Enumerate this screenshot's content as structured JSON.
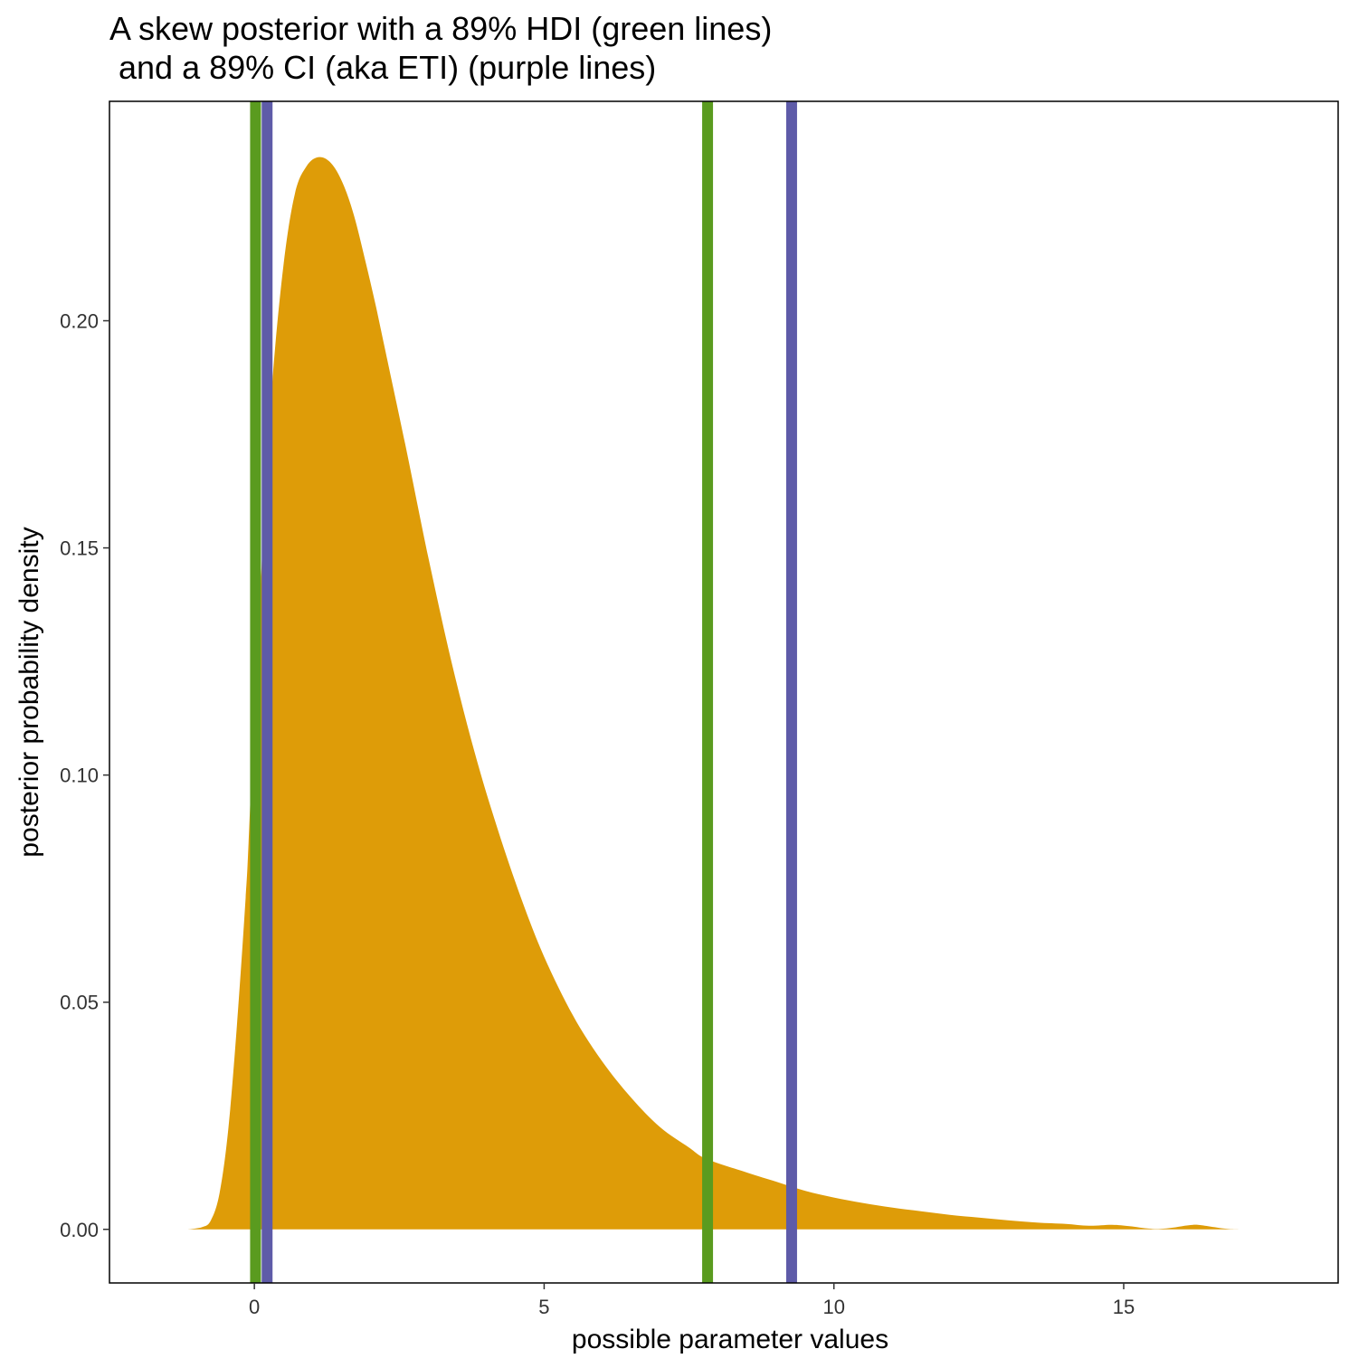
{
  "chart_data": {
    "type": "area",
    "title_lines": [
      "A skew posterior with a 89% HDI (green lines)",
      " and a 89% CI (aka ETI) (purple lines)"
    ],
    "xlabel": "possible parameter values",
    "ylabel": "posterior probability density",
    "xlim": [
      -2.5,
      18.7
    ],
    "ylim": [
      -0.0118,
      0.2483
    ],
    "x_ticks": [
      {
        "value": 0,
        "label": "0"
      },
      {
        "value": 5,
        "label": "5"
      },
      {
        "value": 10,
        "label": "10"
      },
      {
        "value": 15,
        "label": "15"
      }
    ],
    "y_ticks": [
      {
        "value": 0.0,
        "label": "0.00"
      },
      {
        "value": 0.05,
        "label": "0.05"
      },
      {
        "value": 0.1,
        "label": "0.10"
      },
      {
        "value": 0.15,
        "label": "0.15"
      },
      {
        "value": 0.2,
        "label": "0.20"
      }
    ],
    "grid": false,
    "colors": {
      "density": "#DE9C08",
      "hdi": "#5A9B1F",
      "eti": "#5E5BA8",
      "frame": "#000000"
    },
    "series": [
      {
        "x": [
          -1.15,
          -0.9,
          -0.75,
          -0.6,
          -0.45,
          -0.3,
          -0.15,
          -0.1,
          0.0,
          0.15,
          0.3,
          0.5,
          0.7,
          0.9,
          1.1,
          1.3,
          1.5,
          1.7,
          1.9,
          2.1,
          2.3,
          2.6,
          3.0,
          3.4,
          3.8,
          4.2,
          4.6,
          5.0,
          5.5,
          6.0,
          6.5,
          7.0,
          7.5,
          7.8,
          8.5,
          9.0,
          9.5,
          10.0,
          10.5,
          11.0,
          11.5,
          12.0,
          12.5,
          13.0,
          13.5,
          14.0,
          14.4,
          14.8,
          15.1,
          15.5,
          15.8,
          16.2,
          16.5,
          16.8,
          17.2
        ],
        "y": [
          0.0,
          0.0005,
          0.002,
          0.008,
          0.022,
          0.045,
          0.073,
          0.085,
          0.115,
          0.152,
          0.185,
          0.212,
          0.228,
          0.234,
          0.236,
          0.235,
          0.231,
          0.224,
          0.214,
          0.203,
          0.191,
          0.173,
          0.148,
          0.125,
          0.105,
          0.088,
          0.073,
          0.06,
          0.047,
          0.037,
          0.029,
          0.0225,
          0.018,
          0.0155,
          0.0125,
          0.0105,
          0.0085,
          0.007,
          0.0058,
          0.0048,
          0.004,
          0.0032,
          0.0026,
          0.002,
          0.0015,
          0.0012,
          0.0008,
          0.001,
          0.0007,
          0.0001,
          0.0003,
          0.001,
          0.0006,
          0.0001,
          0.0
        ]
      }
    ],
    "hdi": [
      0.02,
      7.82
    ],
    "eti": [
      0.22,
      9.27
    ]
  }
}
